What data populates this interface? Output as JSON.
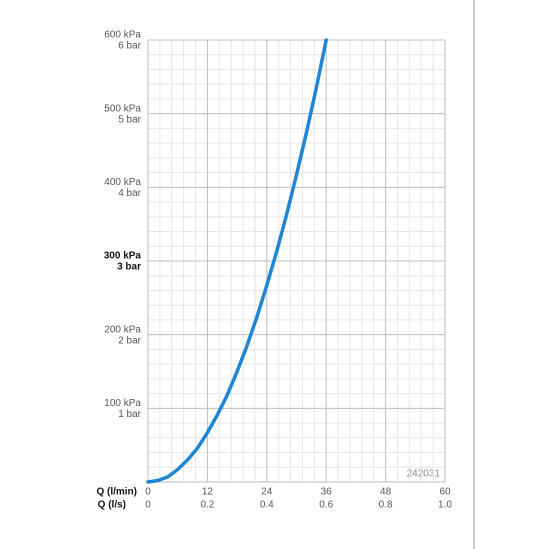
{
  "chart_data": {
    "type": "line",
    "x": [
      0,
      2,
      4,
      6,
      8,
      10,
      12,
      14,
      16,
      18,
      20,
      22,
      24,
      26,
      28,
      30,
      32,
      34,
      36
    ],
    "series": [
      {
        "color": "#1f86d6",
        "values": [
          0,
          2,
          7,
          17,
          30,
          46,
          67,
          91,
          118,
          150,
          185,
          224,
          267,
          313,
          363,
          417,
          474,
          535,
          600
        ]
      }
    ],
    "xlim": [
      0,
      60
    ],
    "xticks": [
      0,
      12,
      24,
      36,
      48,
      60
    ],
    "x_label": "Q (l/min)",
    "x2lim": [
      0,
      1
    ],
    "x2ticks": [
      0,
      0.2,
      0.4,
      0.6,
      0.8,
      {
        "value": 1,
        "label": "1.0"
      }
    ],
    "x2_label": "Q (l/s)",
    "ylim": [
      0,
      600
    ],
    "yticks": [
      {
        "value": 100,
        "label": "100 kPa"
      },
      {
        "value": 200,
        "label": "200 kPa"
      },
      {
        "value": 300,
        "label": "300 kPa"
      },
      {
        "value": 400,
        "label": "400 kPa"
      },
      {
        "value": 500,
        "label": "500 kPa"
      },
      {
        "value": 600,
        "label": "600 kPa"
      }
    ],
    "ybar_ticks": [
      {
        "value": 100,
        "label": "1 bar"
      },
      {
        "value": 200,
        "label": "2 bar"
      },
      {
        "value": 300,
        "label": "3 bar"
      },
      {
        "value": 400,
        "label": "4 bar"
      },
      {
        "value": 500,
        "label": "5 bar"
      },
      {
        "value": 600,
        "label": "6 bar"
      }
    ],
    "bold_ytick": 300,
    "grid": true,
    "minor_grid_divisions": 5,
    "annotation": "242031"
  }
}
